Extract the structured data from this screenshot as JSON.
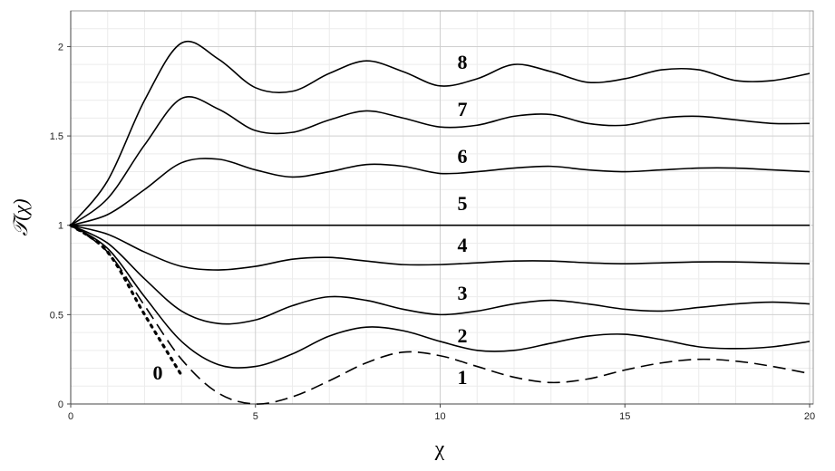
{
  "chart_data": {
    "type": "line",
    "x_label": "χ",
    "y_label": "𝒯(χ)",
    "x": [
      0,
      1,
      2,
      3,
      4,
      5,
      6,
      7,
      8,
      9,
      10,
      11,
      12,
      13,
      14,
      15,
      16,
      17,
      18,
      19,
      20
    ],
    "series": [
      {
        "name": "0",
        "color": "#000000",
        "style": "dotted",
        "values": [
          1,
          0.85,
          0.5,
          0.16,
          null,
          null,
          null,
          null,
          null,
          null,
          null,
          null,
          null,
          null,
          null,
          null,
          null,
          null,
          null,
          null,
          null
        ]
      },
      {
        "name": "1",
        "color": "#000000",
        "style": "dashed",
        "values": [
          1,
          0.85,
          0.55,
          0.25,
          0.06,
          0.0,
          0.04,
          0.13,
          0.23,
          0.29,
          0.27,
          0.21,
          0.15,
          0.12,
          0.14,
          0.19,
          0.23,
          0.25,
          0.24,
          0.21,
          0.17
        ]
      },
      {
        "name": "2",
        "color": "#000000",
        "style": "solid",
        "values": [
          1,
          0.87,
          0.6,
          0.35,
          0.22,
          0.21,
          0.28,
          0.38,
          0.43,
          0.41,
          0.35,
          0.3,
          0.3,
          0.34,
          0.38,
          0.39,
          0.36,
          0.32,
          0.31,
          0.32,
          0.35
        ]
      },
      {
        "name": "3",
        "color": "#000000",
        "style": "solid",
        "values": [
          1,
          0.9,
          0.7,
          0.52,
          0.45,
          0.47,
          0.55,
          0.6,
          0.58,
          0.53,
          0.5,
          0.52,
          0.56,
          0.58,
          0.56,
          0.53,
          0.52,
          0.54,
          0.56,
          0.57,
          0.56
        ]
      },
      {
        "name": "4",
        "color": "#000000",
        "style": "solid",
        "values": [
          1,
          0.95,
          0.85,
          0.77,
          0.75,
          0.77,
          0.81,
          0.82,
          0.8,
          0.78,
          0.78,
          0.79,
          0.8,
          0.8,
          0.79,
          0.785,
          0.79,
          0.795,
          0.795,
          0.79,
          0.785
        ]
      },
      {
        "name": "5",
        "color": "#000000",
        "style": "solid",
        "values": [
          1,
          1,
          1,
          1,
          1,
          1,
          1,
          1,
          1,
          1,
          1,
          1,
          1,
          1,
          1,
          1,
          1,
          1,
          1,
          1,
          1
        ]
      },
      {
        "name": "6",
        "color": "#000000",
        "style": "solid",
        "values": [
          1,
          1.06,
          1.2,
          1.35,
          1.37,
          1.31,
          1.27,
          1.3,
          1.34,
          1.33,
          1.29,
          1.3,
          1.32,
          1.33,
          1.31,
          1.3,
          1.31,
          1.32,
          1.32,
          1.31,
          1.3
        ]
      },
      {
        "name": "7",
        "color": "#000000",
        "style": "solid",
        "values": [
          1,
          1.15,
          1.45,
          1.71,
          1.65,
          1.53,
          1.52,
          1.59,
          1.64,
          1.6,
          1.55,
          1.56,
          1.61,
          1.62,
          1.57,
          1.56,
          1.6,
          1.61,
          1.59,
          1.57,
          1.57
        ]
      },
      {
        "name": "8",
        "color": "#000000",
        "style": "solid",
        "values": [
          1,
          1.25,
          1.7,
          2.02,
          1.93,
          1.77,
          1.75,
          1.85,
          1.92,
          1.86,
          1.78,
          1.82,
          1.9,
          1.86,
          1.8,
          1.82,
          1.87,
          1.87,
          1.81,
          1.81,
          1.85
        ]
      }
    ],
    "xlim": [
      0,
      20
    ],
    "xticks": [
      0,
      5,
      10,
      15,
      20
    ],
    "ylim": [
      0,
      2.2
    ],
    "yticks": [
      0,
      0.5,
      1,
      1.5,
      2
    ],
    "grid": true
  }
}
